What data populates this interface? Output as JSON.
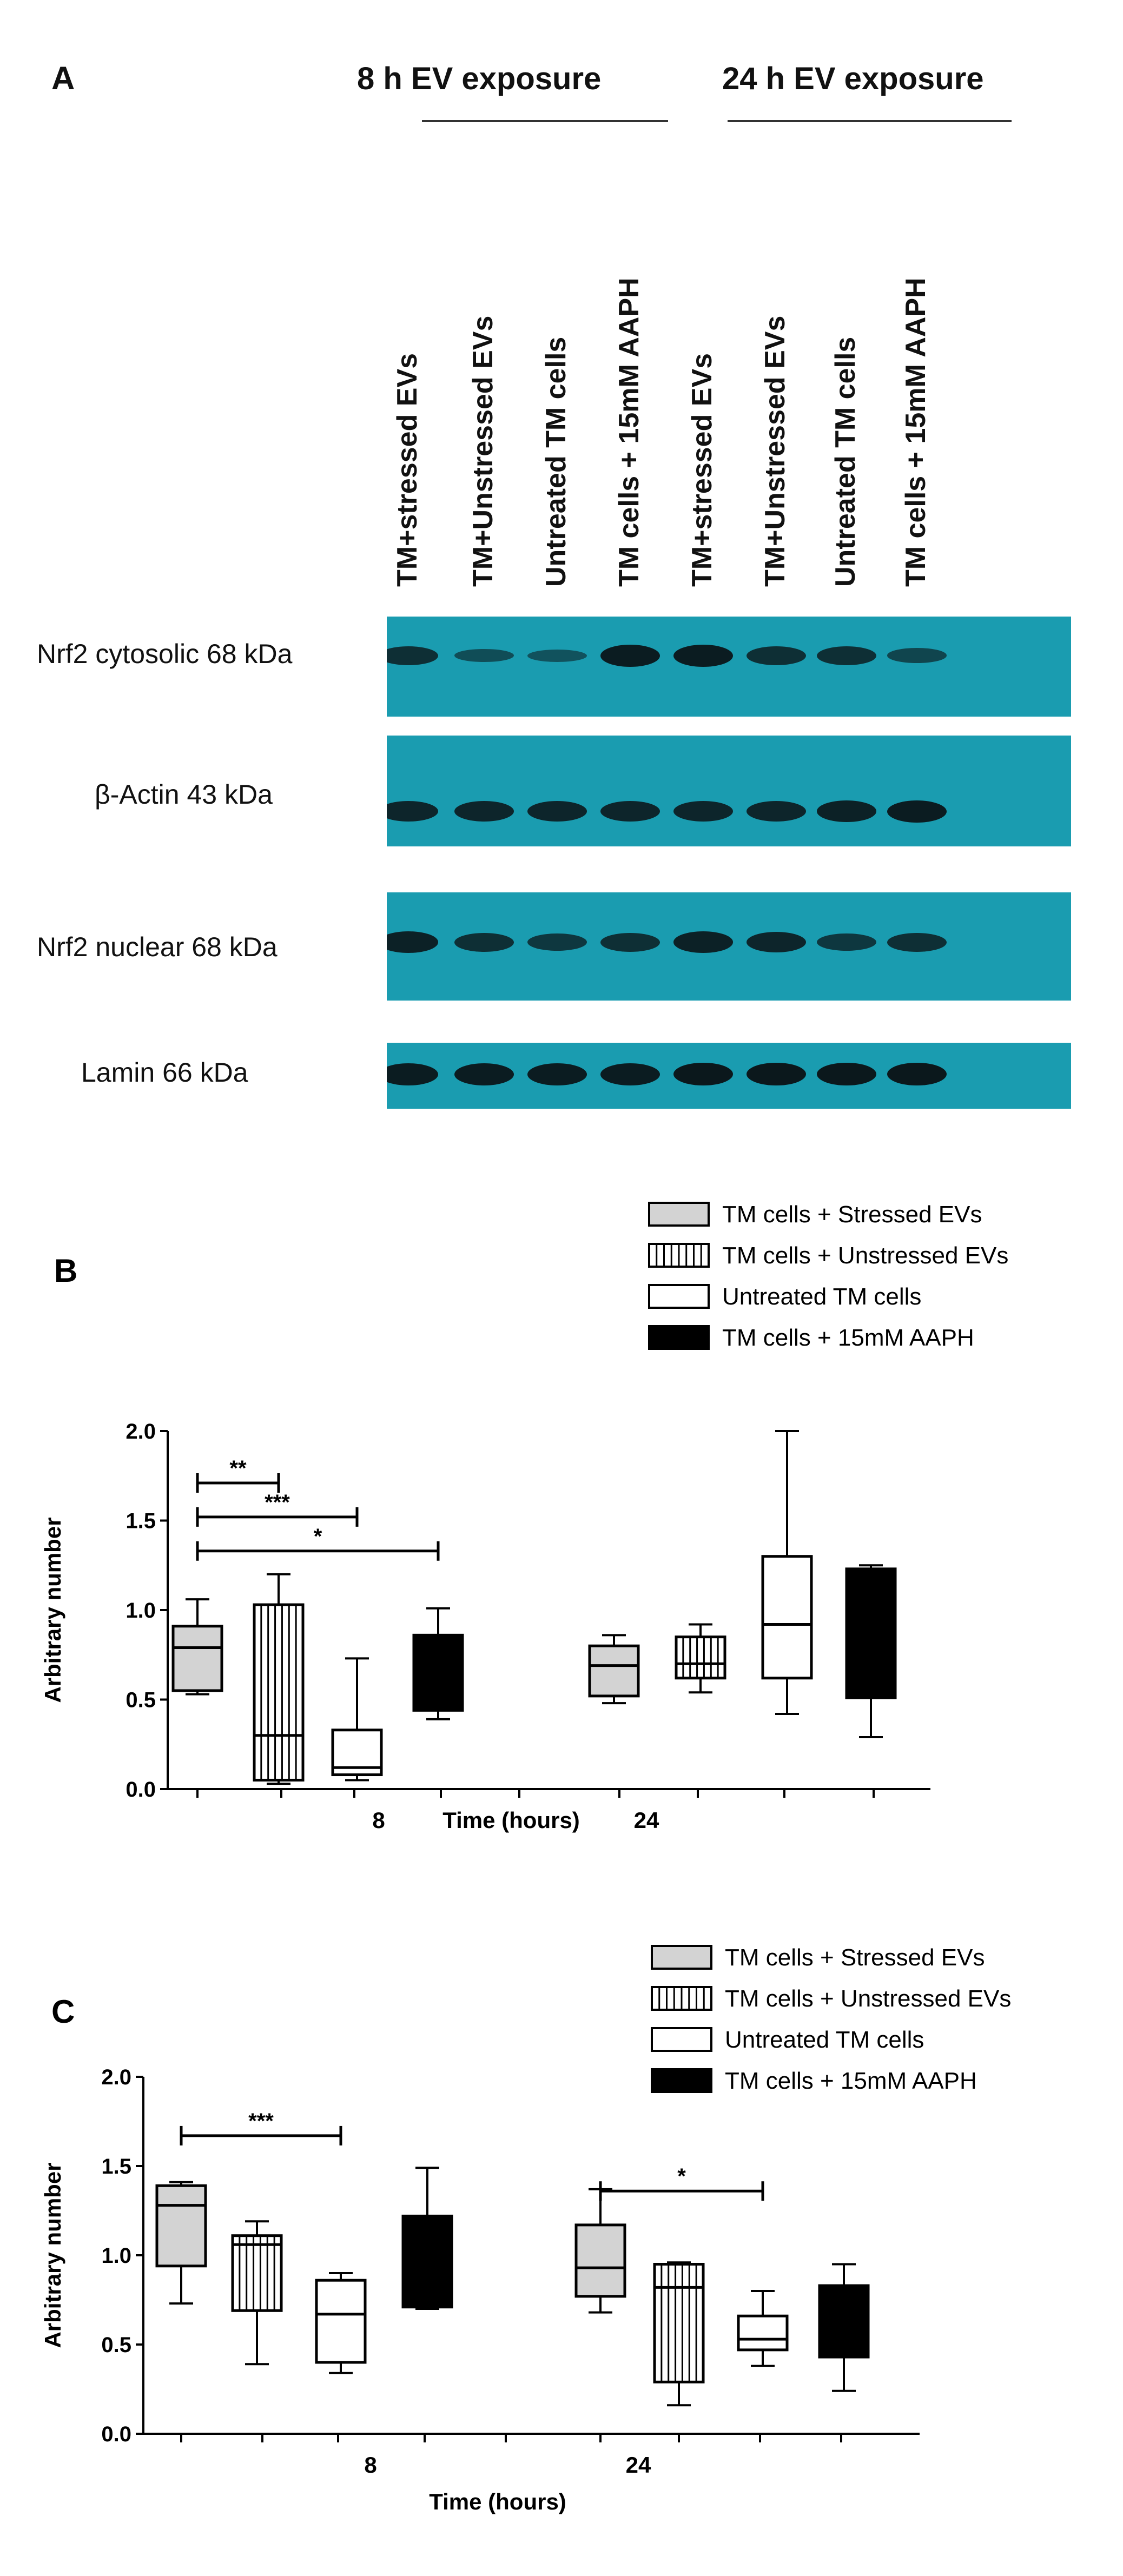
{
  "panel_a": {
    "letter": "A",
    "exposure_8h": "8 h EV exposure",
    "exposure_24h": "24 h EV exposure",
    "lanes": [
      "TM+stressed EVs",
      "TM+Unstressed EVs",
      "Untreated TM cells",
      "TM cells + 15mM AAPH",
      "TM+stressed EVs",
      "TM+Unstressed EVs",
      "Untreated TM cells",
      "TM cells + 15mM AAPH"
    ],
    "blots": [
      {
        "label": "Nrf2 cytosolic 68 kDa",
        "intensity": [
          0.7,
          0.35,
          0.3,
          0.9,
          0.9,
          0.7,
          0.7,
          0.45
        ]
      },
      {
        "label": "β-Actin 43 kDa",
        "intensity": [
          0.8,
          0.8,
          0.8,
          0.8,
          0.8,
          0.8,
          0.85,
          0.9
        ]
      },
      {
        "label": "Nrf2 nuclear  68 kDa",
        "intensity": [
          0.85,
          0.7,
          0.6,
          0.7,
          0.85,
          0.8,
          0.6,
          0.7
        ]
      },
      {
        "label": "Lamin 66 kDa",
        "intensity": [
          0.9,
          0.9,
          0.9,
          0.9,
          0.95,
          0.95,
          0.95,
          0.95
        ]
      }
    ]
  },
  "legend_labels": [
    "TM cells + Stressed EVs",
    "TM cells + Unstressed EVs",
    "Untreated TM cells",
    "TM cells + 15mM AAPH"
  ],
  "chart_data": [
    {
      "type": "box",
      "panel": "B",
      "ylabel": "Arbitrary number",
      "xlabel": "Time (hours)",
      "ylim": [
        0.0,
        2.0
      ],
      "yticks": [
        "0.0",
        "0.5",
        "1.0",
        "1.5",
        "2.0"
      ],
      "categories": [
        "8",
        "24"
      ],
      "series": [
        {
          "name": "TM cells + Stressed EVs",
          "fill": "#d3d3d3",
          "pattern": "solid",
          "boxes": [
            {
              "min": 0.53,
              "q1": 0.55,
              "median": 0.79,
              "q3": 0.91,
              "max": 1.06
            },
            {
              "min": 0.48,
              "q1": 0.52,
              "median": 0.69,
              "q3": 0.8,
              "max": 0.86
            }
          ]
        },
        {
          "name": "TM cells + Unstressed EVs",
          "fill": "#ffffff",
          "pattern": "vertical-lines",
          "boxes": [
            {
              "min": 0.03,
              "q1": 0.05,
              "median": 0.3,
              "q3": 1.03,
              "max": 1.2
            },
            {
              "min": 0.54,
              "q1": 0.62,
              "median": 0.7,
              "q3": 0.85,
              "max": 0.92
            }
          ]
        },
        {
          "name": "Untreated TM cells",
          "fill": "#ffffff",
          "pattern": "solid",
          "boxes": [
            {
              "min": 0.05,
              "q1": 0.08,
              "median": 0.12,
              "q3": 0.33,
              "max": 0.73
            },
            {
              "min": 0.42,
              "q1": 0.62,
              "median": 0.92,
              "q3": 1.3,
              "max": 2.0
            }
          ]
        },
        {
          "name": "TM cells + 15mM AAPH",
          "fill": "#000000",
          "pattern": "solid",
          "boxes": [
            {
              "min": 0.39,
              "q1": 0.44,
              "median": 0.6,
              "q3": 0.86,
              "max": 1.01
            },
            {
              "min": 0.29,
              "q1": 0.51,
              "median": 0.9,
              "q3": 1.23,
              "max": 1.25
            }
          ]
        }
      ],
      "significance": [
        {
          "from_box": 0,
          "to_box": 1,
          "y": 1.71,
          "label": "**"
        },
        {
          "from_box": 0,
          "to_box": 2,
          "y": 1.52,
          "label": "***"
        },
        {
          "from_box": 0,
          "to_box": 3,
          "y": 1.33,
          "label": "*"
        }
      ]
    },
    {
      "type": "box",
      "panel": "C",
      "ylabel": "Arbitrary number",
      "xlabel": "Time (hours)",
      "ylim": [
        0.0,
        2.0
      ],
      "yticks": [
        "0.0",
        "0.5",
        "1.0",
        "1.5",
        "2.0"
      ],
      "categories": [
        "8",
        "24"
      ],
      "series": [
        {
          "name": "TM cells + Stressed EVs",
          "fill": "#d3d3d3",
          "pattern": "solid",
          "boxes": [
            {
              "min": 0.73,
              "q1": 0.94,
              "median": 1.28,
              "q3": 1.39,
              "max": 1.41
            },
            {
              "min": 0.68,
              "q1": 0.77,
              "median": 0.93,
              "q3": 1.17,
              "max": 1.37
            }
          ]
        },
        {
          "name": "TM cells + Unstressed EVs",
          "fill": "#ffffff",
          "pattern": "vertical-lines",
          "boxes": [
            {
              "min": 0.39,
              "q1": 0.69,
              "median": 1.06,
              "q3": 1.11,
              "max": 1.19
            },
            {
              "min": 0.16,
              "q1": 0.29,
              "median": 0.82,
              "q3": 0.95,
              "max": 0.96
            }
          ]
        },
        {
          "name": "Untreated TM cells",
          "fill": "#ffffff",
          "pattern": "solid",
          "boxes": [
            {
              "min": 0.34,
              "q1": 0.4,
              "median": 0.67,
              "q3": 0.86,
              "max": 0.9
            },
            {
              "min": 0.38,
              "q1": 0.47,
              "median": 0.53,
              "q3": 0.66,
              "max": 0.8
            }
          ]
        },
        {
          "name": "TM cells + 15mM AAPH",
          "fill": "#000000",
          "pattern": "solid",
          "boxes": [
            {
              "min": 0.7,
              "q1": 0.71,
              "median": 0.72,
              "q3": 1.22,
              "max": 1.49
            },
            {
              "min": 0.24,
              "q1": 0.43,
              "median": 0.59,
              "q3": 0.83,
              "max": 0.95
            }
          ]
        }
      ],
      "significance": [
        {
          "from_box": 0,
          "to_box": 2,
          "y": 1.67,
          "label": "***"
        },
        {
          "from_box": 4,
          "to_box": 6,
          "y": 1.36,
          "label": "*"
        }
      ]
    }
  ]
}
